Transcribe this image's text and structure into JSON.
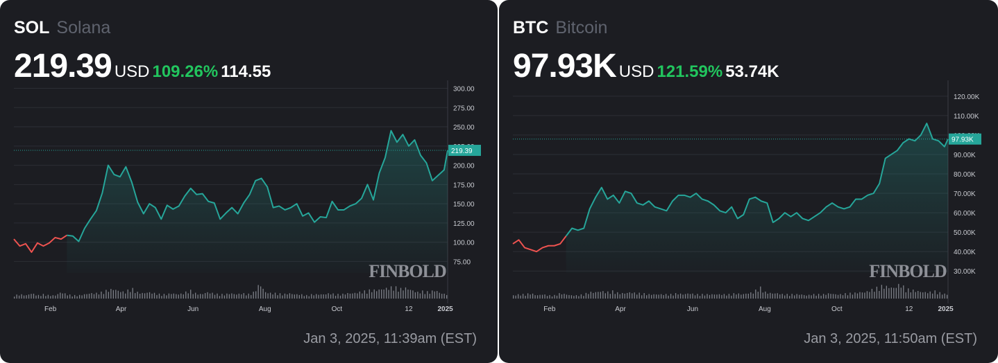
{
  "panels": [
    {
      "symbol": "SOL",
      "name": "Solana",
      "price": "219.39",
      "currency": "USD",
      "change_pct": "109.26%",
      "change_abs": "114.55",
      "price_tag": "219.39",
      "watermark": "FINBOLD",
      "timestamp": "Jan 3, 2025, 11:39am (EST)"
    },
    {
      "symbol": "BTC",
      "name": "Bitcoin",
      "price": "97.93K",
      "currency": "USD",
      "change_pct": "121.59%",
      "change_abs": "53.74K",
      "price_tag": "97.93K",
      "watermark": "FINBOLD",
      "timestamp": "Jan 3, 2025, 11:50am (EST)"
    }
  ],
  "colors": {
    "background": "#1c1d22",
    "line_up": "#26a69a",
    "line_down": "#ef5350",
    "positive": "#22c55e",
    "volume": "#7d8088",
    "grid": "#2c2e35"
  },
  "chart_data": [
    {
      "type": "line",
      "series": [
        {
          "x": [
            "2024-01-01",
            "2024-01-06",
            "2024-01-11",
            "2024-01-16",
            "2024-01-21",
            "2024-01-26",
            "2024-01-31",
            "2024-02-05",
            "2024-02-10",
            "2024-02-15",
            "2024-02-20",
            "2024-02-25",
            "2024-03-01",
            "2024-03-06",
            "2024-03-11",
            "2024-03-16",
            "2024-03-21",
            "2024-03-26",
            "2024-03-31",
            "2024-04-05",
            "2024-04-10",
            "2024-04-15",
            "2024-04-20",
            "2024-04-25",
            "2024-04-30",
            "2024-05-05",
            "2024-05-10",
            "2024-05-15",
            "2024-05-20",
            "2024-05-25",
            "2024-05-30",
            "2024-06-04",
            "2024-06-09",
            "2024-06-14",
            "2024-06-19",
            "2024-06-24",
            "2024-06-29",
            "2024-07-04",
            "2024-07-09",
            "2024-07-14",
            "2024-07-19",
            "2024-07-24",
            "2024-07-29",
            "2024-08-03",
            "2024-08-08",
            "2024-08-13",
            "2024-08-18",
            "2024-08-23",
            "2024-08-28",
            "2024-09-02",
            "2024-09-07",
            "2024-09-12",
            "2024-09-17",
            "2024-09-22",
            "2024-09-27",
            "2024-10-02",
            "2024-10-07",
            "2024-10-12",
            "2024-10-17",
            "2024-10-22",
            "2024-10-27",
            "2024-11-01",
            "2024-11-06",
            "2024-11-11",
            "2024-11-16",
            "2024-11-21",
            "2024-11-26",
            "2024-12-01",
            "2024-12-06",
            "2024-12-11",
            "2024-12-16",
            "2024-12-21",
            "2024-12-26",
            "2024-12-31",
            "2025-01-03"
          ],
          "y": [
            104,
            95,
            98,
            87,
            99,
            95,
            99,
            106,
            104,
            109,
            108,
            101,
            118,
            130,
            141,
            164,
            200,
            188,
            185,
            198,
            178,
            152,
            137,
            150,
            145,
            130,
            148,
            143,
            147,
            160,
            170,
            162,
            163,
            153,
            151,
            130,
            138,
            145,
            137,
            151,
            162,
            180,
            183,
            172,
            145,
            147,
            142,
            145,
            150,
            134,
            138,
            126,
            133,
            132,
            153,
            142,
            142,
            147,
            150,
            157,
            175,
            155,
            190,
            210,
            245,
            230,
            240,
            225,
            233,
            213,
            203,
            180,
            187,
            194,
            219.39
          ]
        }
      ],
      "ylim": [
        60,
        305
      ],
      "yticks": [
        "300.00",
        "275.00",
        "250.00",
        "225.00",
        "200.00",
        "175.00",
        "150.00",
        "125.00",
        "100.00",
        "75.00"
      ],
      "xticks": [
        "Feb",
        "Apr",
        "Jun",
        "Aug",
        "Oct",
        "12",
        "2025"
      ],
      "last_value": 219.39,
      "volume": [
        3,
        4,
        3,
        5,
        3,
        4,
        3,
        3,
        6,
        4,
        3,
        3,
        4,
        5,
        5,
        6,
        8,
        9,
        7,
        6,
        10,
        6,
        5,
        6,
        5,
        4,
        4,
        5,
        4,
        5,
        8,
        5,
        4,
        6,
        5,
        4,
        4,
        5,
        4,
        5,
        4,
        6,
        14,
        6,
        5,
        5,
        4,
        5,
        4,
        4,
        3,
        4,
        4,
        4,
        5,
        4,
        4,
        5,
        5,
        6,
        7,
        8,
        8,
        9,
        10,
        11,
        9,
        10,
        8,
        6,
        7,
        6,
        8,
        5,
        4
      ],
      "grid": "horizontal"
    },
    {
      "type": "line",
      "series": [
        {
          "x": [
            "2024-01-01",
            "2024-01-06",
            "2024-01-11",
            "2024-01-16",
            "2024-01-21",
            "2024-01-26",
            "2024-01-31",
            "2024-02-05",
            "2024-02-10",
            "2024-02-15",
            "2024-02-20",
            "2024-02-25",
            "2024-03-01",
            "2024-03-06",
            "2024-03-11",
            "2024-03-16",
            "2024-03-21",
            "2024-03-26",
            "2024-03-31",
            "2024-04-05",
            "2024-04-10",
            "2024-04-15",
            "2024-04-20",
            "2024-04-25",
            "2024-04-30",
            "2024-05-05",
            "2024-05-10",
            "2024-05-15",
            "2024-05-20",
            "2024-05-25",
            "2024-05-30",
            "2024-06-04",
            "2024-06-09",
            "2024-06-14",
            "2024-06-19",
            "2024-06-24",
            "2024-06-29",
            "2024-07-04",
            "2024-07-09",
            "2024-07-14",
            "2024-07-19",
            "2024-07-24",
            "2024-07-29",
            "2024-08-03",
            "2024-08-08",
            "2024-08-13",
            "2024-08-18",
            "2024-08-23",
            "2024-08-28",
            "2024-09-02",
            "2024-09-07",
            "2024-09-12",
            "2024-09-17",
            "2024-09-22",
            "2024-09-27",
            "2024-10-02",
            "2024-10-07",
            "2024-10-12",
            "2024-10-17",
            "2024-10-22",
            "2024-10-27",
            "2024-11-01",
            "2024-11-06",
            "2024-11-11",
            "2024-11-16",
            "2024-11-21",
            "2024-11-26",
            "2024-12-01",
            "2024-12-06",
            "2024-12-11",
            "2024-12-16",
            "2024-12-21",
            "2024-12-26",
            "2024-12-31",
            "2025-01-03"
          ],
          "y": [
            44,
            46,
            42,
            41,
            40,
            42,
            43,
            43,
            44,
            48,
            52,
            51,
            52,
            62,
            68,
            73,
            67,
            69,
            65,
            71,
            70,
            65,
            64,
            66,
            63,
            62,
            61,
            66,
            69,
            69,
            68,
            70,
            67,
            66,
            64,
            61,
            60,
            63,
            57,
            59,
            67,
            68,
            66,
            65,
            55,
            57,
            60,
            58,
            60,
            57,
            56,
            58,
            60,
            63,
            65,
            63,
            62,
            63,
            67,
            67,
            69,
            70,
            75,
            88,
            90,
            92,
            96,
            98,
            97,
            100,
            106,
            98,
            97,
            94,
            97.93
          ]
        }
      ],
      "ylim": [
        29,
        126
      ],
      "yticks": [
        "120.00K",
        "110.00K",
        "100.00K",
        "90.00K",
        "80.00K",
        "70.00K",
        "60.00K",
        "50.00K",
        "40.00K",
        "30.00K"
      ],
      "xticks": [
        "Feb",
        "Apr",
        "Jun",
        "Aug",
        "Oct",
        "12",
        "2025"
      ],
      "last_value": 97.93,
      "volume": [
        3,
        4,
        4,
        5,
        3,
        4,
        3,
        3,
        5,
        4,
        3,
        3,
        4,
        6,
        6,
        7,
        6,
        7,
        5,
        5,
        6,
        5,
        5,
        4,
        4,
        4,
        4,
        4,
        5,
        4,
        5,
        4,
        4,
        4,
        4,
        4,
        4,
        4,
        5,
        4,
        5,
        6,
        11,
        6,
        5,
        5,
        4,
        4,
        4,
        4,
        3,
        4,
        4,
        4,
        5,
        4,
        4,
        5,
        5,
        6,
        6,
        8,
        10,
        12,
        11,
        10,
        14,
        9,
        8,
        7,
        6,
        6,
        7,
        5,
        4
      ],
      "grid": "horizontal"
    }
  ]
}
